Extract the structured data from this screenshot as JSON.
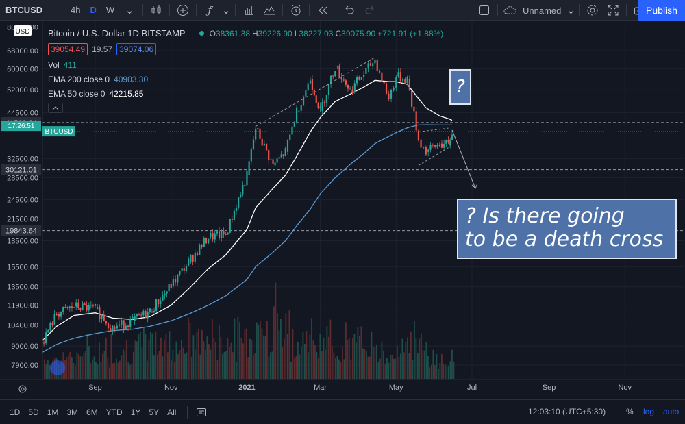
{
  "toolbar": {
    "symbol": "BTCUSD",
    "intervals": [
      "4h",
      "D",
      "W"
    ],
    "active_interval": "D",
    "layout_name": "Unnamed",
    "publish_label": "Publish"
  },
  "legend": {
    "title": "Bitcoin / U.S. Dollar  1D  BITSTAMP",
    "open_label": "O",
    "open": "38361.38",
    "high_label": "H",
    "high": "39226.90",
    "low_label": "L",
    "low": "38227.03",
    "close_label": "C",
    "close": "39075.90",
    "change": "+721.91 (+1.88%)",
    "bid": "39054.49",
    "spread": "19.57",
    "ask": "39074.06",
    "vol_label": "Vol",
    "vol": "411",
    "ema200_label": "EMA 200 close 0",
    "ema200": "40903.30",
    "ema50_label": "EMA 50 close 0",
    "ema50": "42215.85"
  },
  "colors": {
    "background": "#131722",
    "up": "#26a69a",
    "down": "#ef5350",
    "ema200": "#5b9bd5",
    "ema50": "#ffffff",
    "callout": "#4e72a8",
    "current_price_label": "#26a69a"
  },
  "chart_data": {
    "type": "line",
    "title": "Bitcoin / U.S. Dollar  1D  BITSTAMP",
    "xlabel": "",
    "ylabel": "",
    "y_scale": "log",
    "x_ticks": [
      "Sep",
      "Nov",
      "2021",
      "Mar",
      "May",
      "Jul",
      "Sep",
      "Nov"
    ],
    "y_ticks": [
      "80000.00",
      "68000.00",
      "60000.00",
      "52000.00",
      "44500.00",
      "32500.00",
      "28500.00",
      "24500.00",
      "21500.00",
      "18500.00",
      "15500.00",
      "13500.00",
      "11900.00",
      "10400.00",
      "9000.00",
      "7900.00"
    ],
    "y_tick_values": [
      80000,
      68000,
      60000,
      52000,
      44500,
      32500,
      28500,
      24500,
      21500,
      18500,
      15500,
      13500,
      11900,
      10400,
      9000,
      7900
    ],
    "axis_currency": "USD",
    "price_markers": [
      {
        "label": "41568.64",
        "value": 41568.64
      },
      {
        "label": "30121.01",
        "value": 30121.01
      },
      {
        "label": "19843.64",
        "value": 19843.64
      }
    ],
    "current_price": {
      "time": "17:26:51",
      "symbol": "BTCUSD",
      "value": 39075.9
    },
    "x": [
      "2020-07-20",
      "2020-08-01",
      "2020-08-15",
      "2020-09-01",
      "2020-09-15",
      "2020-10-01",
      "2020-10-15",
      "2020-11-01",
      "2020-11-15",
      "2020-12-01",
      "2020-12-15",
      "2021-01-01",
      "2021-01-08",
      "2021-01-22",
      "2021-02-01",
      "2021-02-10",
      "2021-02-21",
      "2021-03-01",
      "2021-03-13",
      "2021-03-25",
      "2021-04-05",
      "2021-04-14",
      "2021-04-25",
      "2021-05-01",
      "2021-05-10",
      "2021-05-19",
      "2021-05-25",
      "2021-06-05",
      "2021-06-12",
      "2021-06-15"
    ],
    "series": [
      {
        "values": [
          9200,
          11200,
          11800,
          11600,
          10200,
          10700,
          11400,
          13600,
          16000,
          19000,
          19300,
          29000,
          40000,
          31000,
          34000,
          45000,
          56000,
          45000,
          61000,
          52000,
          58000,
          64000,
          49000,
          57000,
          56000,
          37000,
          34000,
          36000,
          35500,
          39075
        ]
      },
      {
        "name": "EMA 50 close 0",
        "values": [
          9300,
          10300,
          11100,
          11300,
          10900,
          10800,
          11000,
          11900,
          13300,
          15300,
          16800,
          20000,
          23200,
          26500,
          29000,
          33000,
          39000,
          43000,
          48000,
          50500,
          53000,
          55500,
          55000,
          55000,
          54000,
          49000,
          46000,
          43500,
          42700,
          42215
        ]
      },
      {
        "name": "EMA 200 close 0",
        "values": [
          8600,
          9100,
          9500,
          9800,
          10000,
          10100,
          10300,
          10700,
          11200,
          11900,
          12700,
          14200,
          15500,
          17100,
          18500,
          20500,
          23000,
          25500,
          28500,
          31200,
          33600,
          36000,
          37800,
          38800,
          40100,
          40900,
          40950,
          40900,
          40900,
          40903
        ]
      }
    ],
    "volume": {
      "label": "Vol",
      "last": 411
    },
    "annotations": [
      "?",
      "? Is there going to be a death cross"
    ]
  },
  "bottom": {
    "ranges": [
      "1D",
      "5D",
      "1M",
      "3M",
      "6M",
      "YTD",
      "1Y",
      "5Y",
      "All"
    ],
    "clock": "12:03:10 (UTC+5:30)",
    "percent": "%",
    "log": "log",
    "auto": "auto"
  },
  "callouts": {
    "question": "?",
    "line1": "? Is there going",
    "line2": "to be a death cross"
  }
}
